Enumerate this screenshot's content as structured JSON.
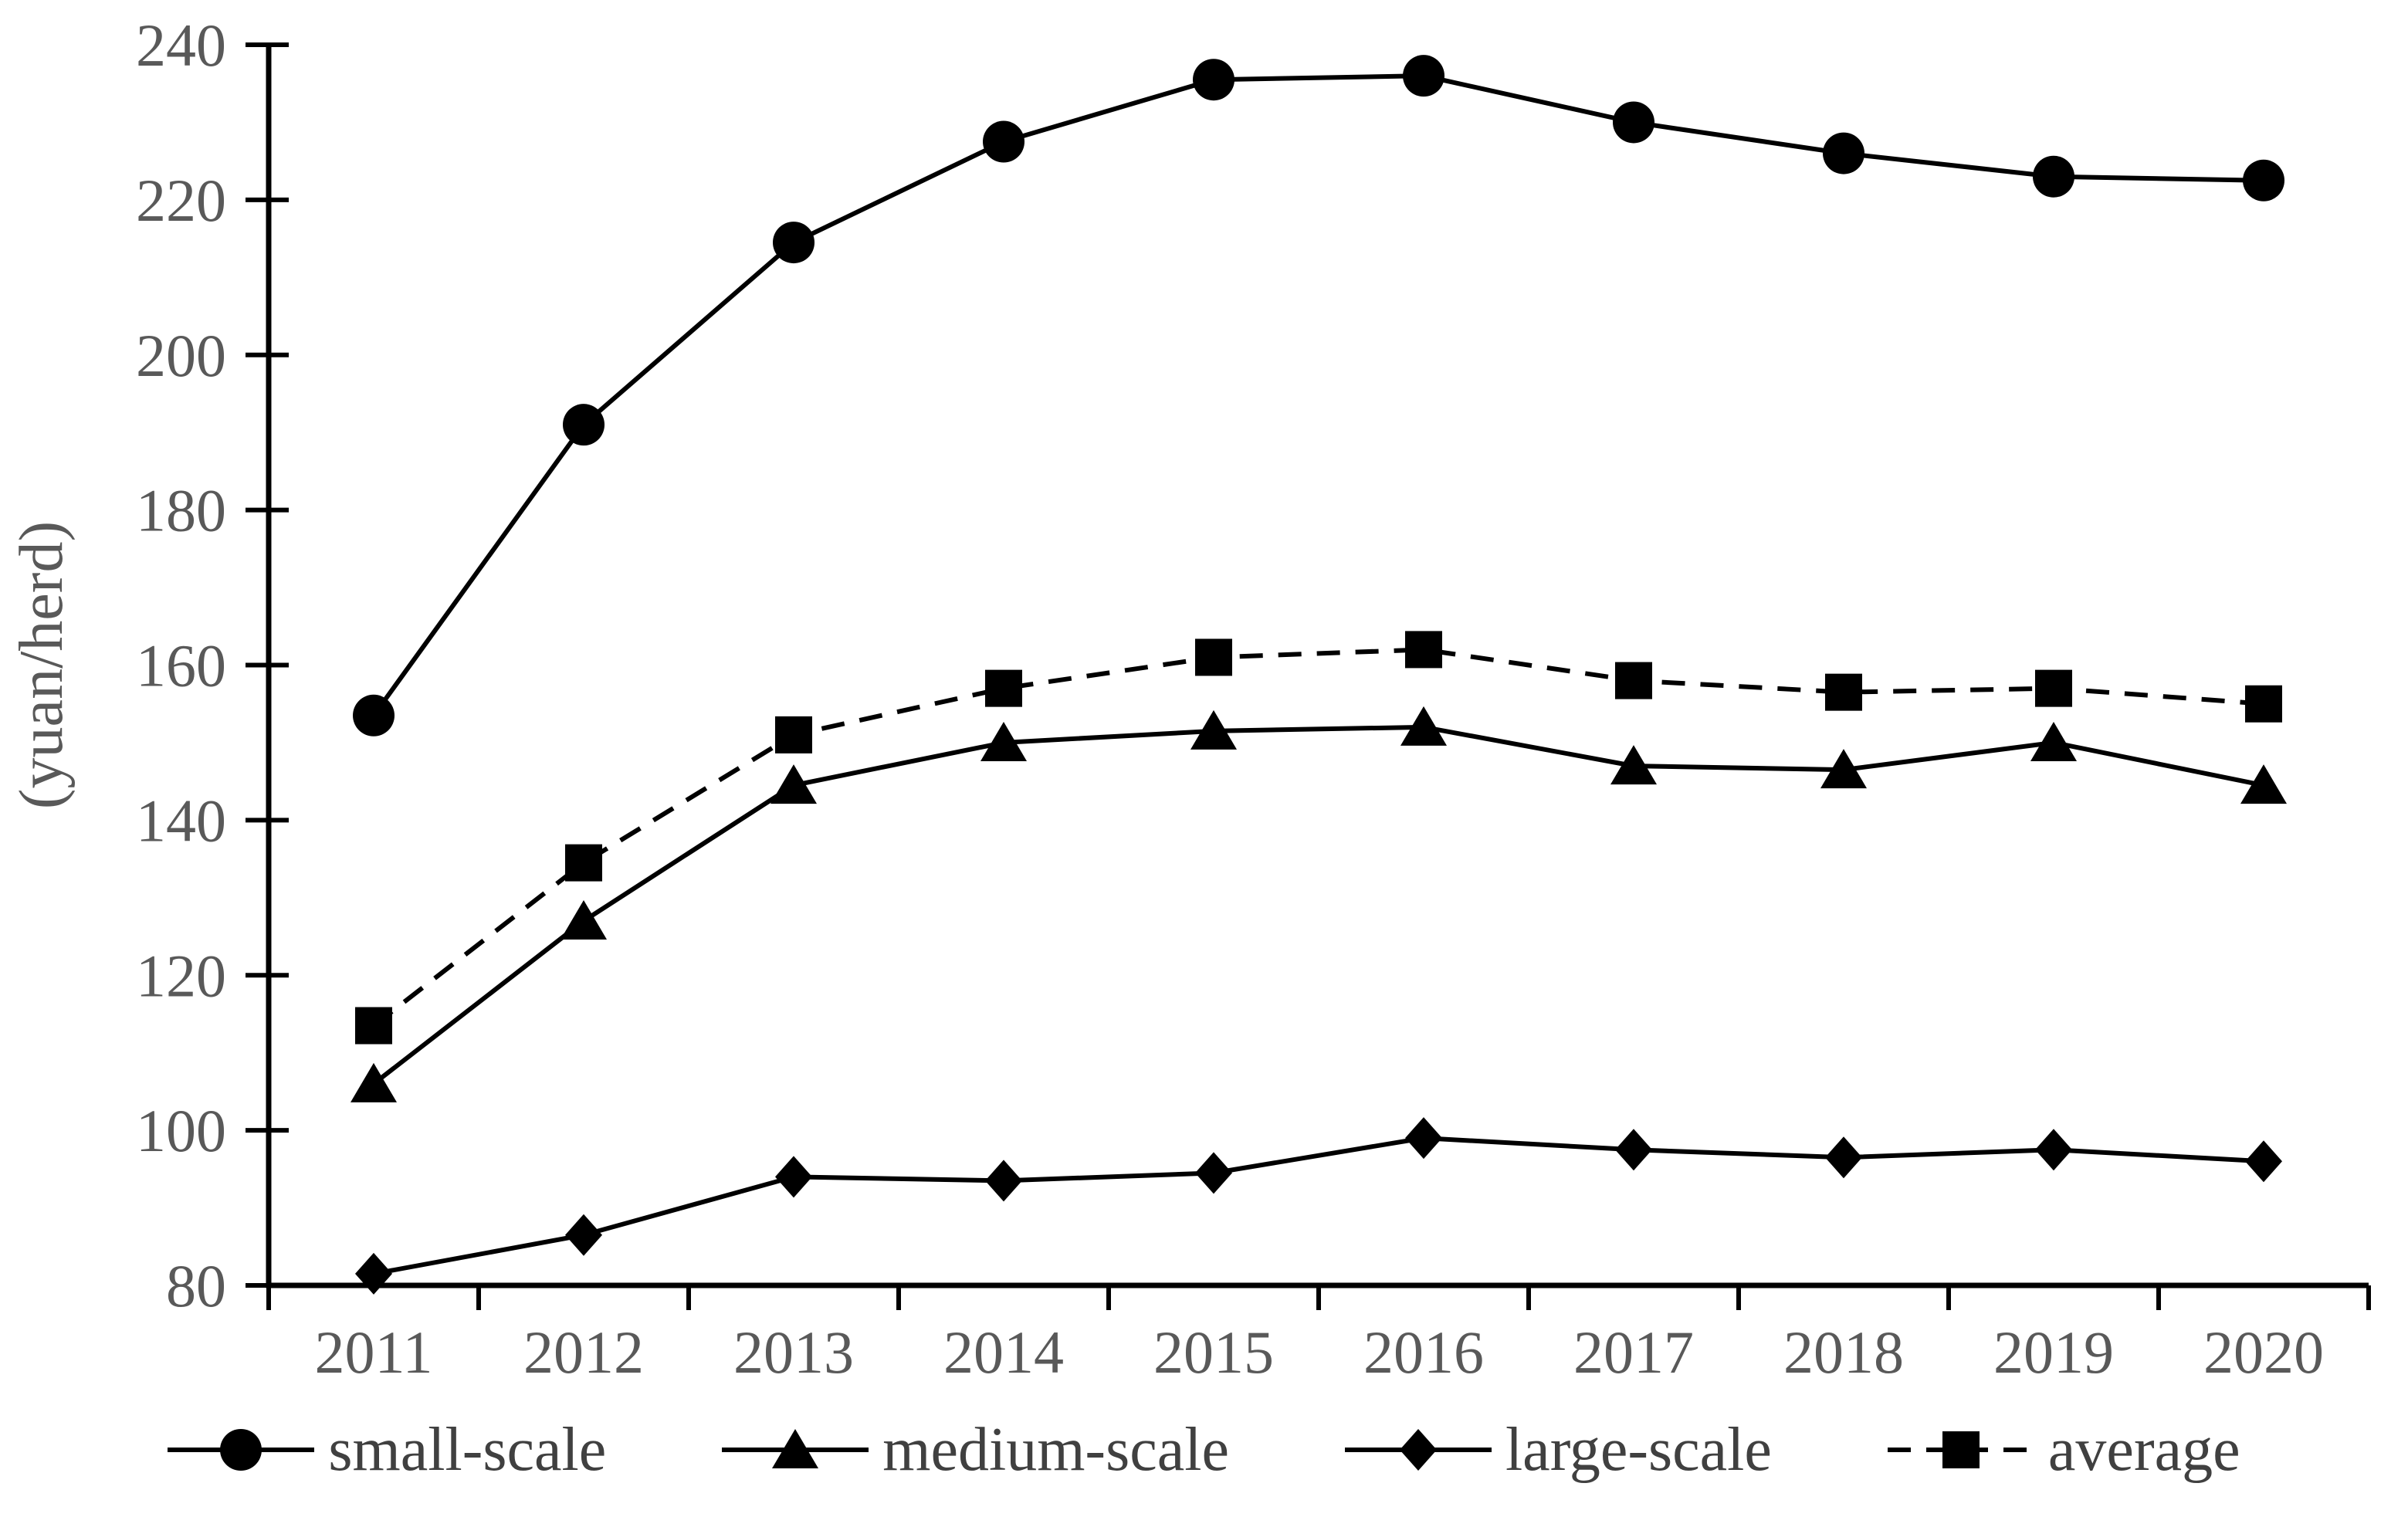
{
  "page": {
    "background": "#ffffff"
  },
  "chart_data": {
    "type": "line",
    "title": "",
    "xlabel": "",
    "ylabel": "(yuan/herd)",
    "ylim": [
      80,
      240
    ],
    "ytick_step": 20,
    "ytick_labels": [
      "80",
      "100",
      "120",
      "140",
      "160",
      "180",
      "200",
      "220",
      "240"
    ],
    "grid": false,
    "legend_position": "bottom",
    "axis_color": "#000000",
    "text_color": "#595959",
    "legend_text_color": "#404040",
    "categories": [
      "2011",
      "2012",
      "2013",
      "2014",
      "2015",
      "2016",
      "2017",
      "2018",
      "2019",
      "2020"
    ],
    "series": [
      {
        "name": "small-scale",
        "marker": "circle",
        "line": "solid",
        "color": "#000000",
        "values": [
          153.5,
          191,
          214.5,
          227.5,
          235.5,
          236,
          230,
          226,
          223,
          222.5
        ]
      },
      {
        "name": "medium-scale",
        "marker": "triangle",
        "line": "solid",
        "color": "#000000",
        "values": [
          106,
          127,
          144.5,
          150,
          151.5,
          152,
          147,
          146.5,
          150,
          144.5
        ]
      },
      {
        "name": "large-scale",
        "marker": "diamond",
        "line": "solid",
        "color": "#000000",
        "values": [
          81.5,
          86.5,
          94,
          93.5,
          94.5,
          99,
          97.5,
          96.5,
          97.5,
          96
        ]
      },
      {
        "name": "average",
        "marker": "square",
        "line": "dashed",
        "color": "#000000",
        "values": [
          113.5,
          134.5,
          151,
          157,
          161,
          162,
          158,
          156.5,
          157,
          155
        ]
      }
    ]
  }
}
